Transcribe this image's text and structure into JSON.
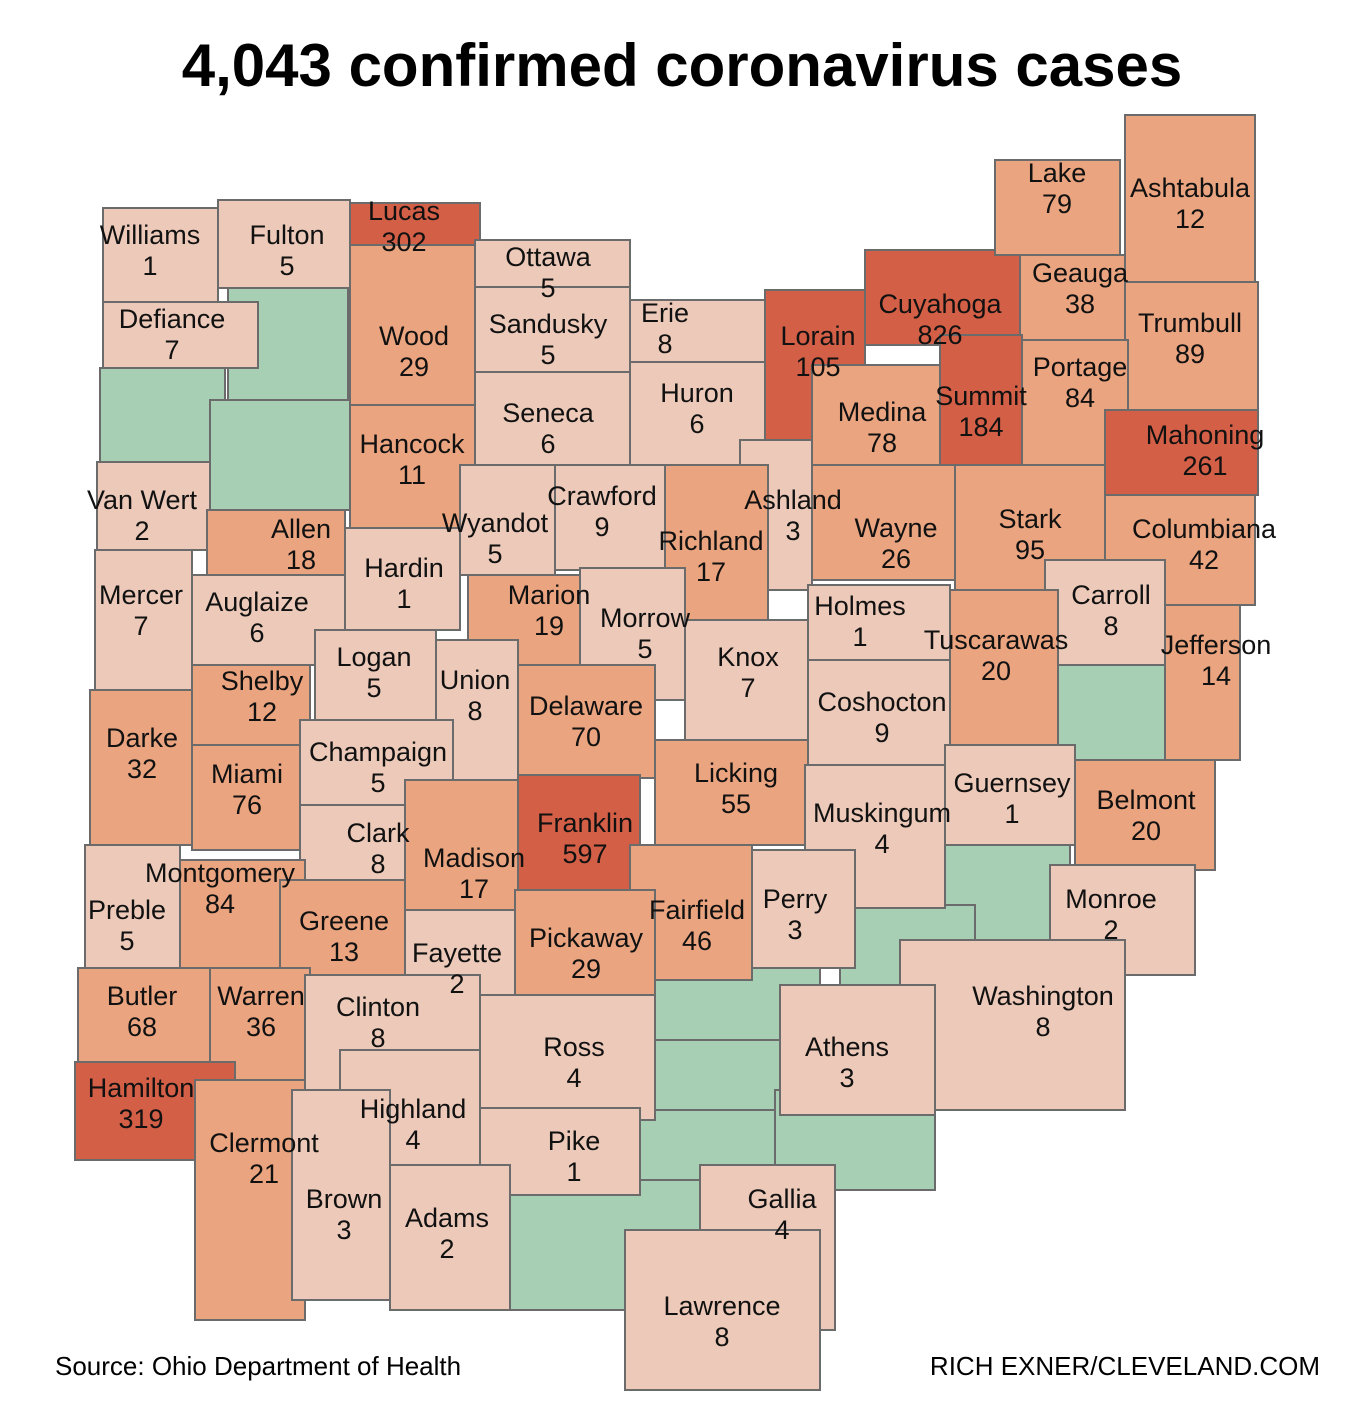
{
  "title": "4,043 confirmed coronavirus cases",
  "source": "Source: Ohio Department of Health",
  "credit": "RICH EXNER/CLEVELAND.COM",
  "counties": [
    {
      "name": "Williams",
      "cases": 1,
      "color": "#ecc9b8"
    },
    {
      "name": "Fulton",
      "cases": 5,
      "color": "#ecc9b8"
    },
    {
      "name": "Lucas",
      "cases": 302,
      "color": "#d35f47"
    },
    {
      "name": "Ottawa",
      "cases": 5,
      "color": "#ecc9b8"
    },
    {
      "name": "Defiance",
      "cases": 7,
      "color": "#ecc9b8"
    },
    {
      "name": "Wood",
      "cases": 29,
      "color": "#eaa47f"
    },
    {
      "name": "Sandusky",
      "cases": 5,
      "color": "#ecc9b8"
    },
    {
      "name": "Erie",
      "cases": 8,
      "color": "#ecc9b8"
    },
    {
      "name": "Lorain",
      "cases": 105,
      "color": "#d35f47"
    },
    {
      "name": "Cuyahoga",
      "cases": 826,
      "color": "#d35f47"
    },
    {
      "name": "Lake",
      "cases": 79,
      "color": "#eaa47f"
    },
    {
      "name": "Ashtabula",
      "cases": 12,
      "color": "#eaa47f"
    },
    {
      "name": "Geauga",
      "cases": 38,
      "color": "#eaa47f"
    },
    {
      "name": "Trumbull",
      "cases": 89,
      "color": "#eaa47f"
    },
    {
      "name": "Portage",
      "cases": 84,
      "color": "#eaa47f"
    },
    {
      "name": "Summit",
      "cases": 184,
      "color": "#d35f47"
    },
    {
      "name": "Medina",
      "cases": 78,
      "color": "#eaa47f"
    },
    {
      "name": "Huron",
      "cases": 6,
      "color": "#ecc9b8"
    },
    {
      "name": "Seneca",
      "cases": 6,
      "color": "#ecc9b8"
    },
    {
      "name": "Hancock",
      "cases": 11,
      "color": "#eaa47f"
    },
    {
      "name": "Mahoning",
      "cases": 261,
      "color": "#d35f47"
    },
    {
      "name": "Van Wert",
      "cases": 2,
      "color": "#ecc9b8"
    },
    {
      "name": "Crawford",
      "cases": 9,
      "color": "#ecc9b8"
    },
    {
      "name": "Ashland",
      "cases": 3,
      "color": "#ecc9b8"
    },
    {
      "name": "Allen",
      "cases": 18,
      "color": "#eaa47f"
    },
    {
      "name": "Wyandot",
      "cases": 5,
      "color": "#ecc9b8"
    },
    {
      "name": "Richland",
      "cases": 17,
      "color": "#eaa47f"
    },
    {
      "name": "Wayne",
      "cases": 26,
      "color": "#eaa47f"
    },
    {
      "name": "Stark",
      "cases": 95,
      "color": "#eaa47f"
    },
    {
      "name": "Columbiana",
      "cases": 42,
      "color": "#eaa47f"
    },
    {
      "name": "Hardin",
      "cases": 1,
      "color": "#ecc9b8"
    },
    {
      "name": "Mercer",
      "cases": 7,
      "color": "#ecc9b8"
    },
    {
      "name": "Auglaize",
      "cases": 6,
      "color": "#ecc9b8"
    },
    {
      "name": "Marion",
      "cases": 19,
      "color": "#eaa47f"
    },
    {
      "name": "Morrow",
      "cases": 5,
      "color": "#ecc9b8"
    },
    {
      "name": "Holmes",
      "cases": 1,
      "color": "#ecc9b8"
    },
    {
      "name": "Carroll",
      "cases": 8,
      "color": "#ecc9b8"
    },
    {
      "name": "Tuscarawas",
      "cases": 20,
      "color": "#eaa47f"
    },
    {
      "name": "Jefferson",
      "cases": 14,
      "color": "#eaa47f"
    },
    {
      "name": "Knox",
      "cases": 7,
      "color": "#ecc9b8"
    },
    {
      "name": "Logan",
      "cases": 5,
      "color": "#ecc9b8"
    },
    {
      "name": "Union",
      "cases": 8,
      "color": "#ecc9b8"
    },
    {
      "name": "Shelby",
      "cases": 12,
      "color": "#eaa47f"
    },
    {
      "name": "Delaware",
      "cases": 70,
      "color": "#eaa47f"
    },
    {
      "name": "Coshocton",
      "cases": 9,
      "color": "#ecc9b8"
    },
    {
      "name": "Darke",
      "cases": 32,
      "color": "#eaa47f"
    },
    {
      "name": "Champaign",
      "cases": 5,
      "color": "#ecc9b8"
    },
    {
      "name": "Miami",
      "cases": 76,
      "color": "#eaa47f"
    },
    {
      "name": "Licking",
      "cases": 55,
      "color": "#eaa47f"
    },
    {
      "name": "Guernsey",
      "cases": 1,
      "color": "#ecc9b8"
    },
    {
      "name": "Belmont",
      "cases": 20,
      "color": "#eaa47f"
    },
    {
      "name": "Muskingum",
      "cases": 4,
      "color": "#ecc9b8"
    },
    {
      "name": "Franklin",
      "cases": 597,
      "color": "#d35f47"
    },
    {
      "name": "Clark",
      "cases": 8,
      "color": "#ecc9b8"
    },
    {
      "name": "Madison",
      "cases": 17,
      "color": "#eaa47f"
    },
    {
      "name": "Montgomery",
      "cases": 84,
      "color": "#eaa47f"
    },
    {
      "name": "Preble",
      "cases": 5,
      "color": "#ecc9b8"
    },
    {
      "name": "Fairfield",
      "cases": 46,
      "color": "#eaa47f"
    },
    {
      "name": "Perry",
      "cases": 3,
      "color": "#ecc9b8"
    },
    {
      "name": "Monroe",
      "cases": 2,
      "color": "#ecc9b8"
    },
    {
      "name": "Greene",
      "cases": 13,
      "color": "#eaa47f"
    },
    {
      "name": "Fayette",
      "cases": 2,
      "color": "#ecc9b8"
    },
    {
      "name": "Pickaway",
      "cases": 29,
      "color": "#eaa47f"
    },
    {
      "name": "Butler",
      "cases": 68,
      "color": "#eaa47f"
    },
    {
      "name": "Warren",
      "cases": 36,
      "color": "#eaa47f"
    },
    {
      "name": "Washington",
      "cases": 8,
      "color": "#ecc9b8"
    },
    {
      "name": "Clinton",
      "cases": 8,
      "color": "#ecc9b8"
    },
    {
      "name": "Ross",
      "cases": 4,
      "color": "#ecc9b8"
    },
    {
      "name": "Athens",
      "cases": 3,
      "color": "#ecc9b8"
    },
    {
      "name": "Hamilton",
      "cases": 319,
      "color": "#d35f47"
    },
    {
      "name": "Highland",
      "cases": 4,
      "color": "#ecc9b8"
    },
    {
      "name": "Clermont",
      "cases": 21,
      "color": "#eaa47f"
    },
    {
      "name": "Pike",
      "cases": 1,
      "color": "#ecc9b8"
    },
    {
      "name": "Gallia",
      "cases": 4,
      "color": "#ecc9b8"
    },
    {
      "name": "Brown",
      "cases": 3,
      "color": "#ecc9b8"
    },
    {
      "name": "Adams",
      "cases": 2,
      "color": "#ecc9b8"
    },
    {
      "name": "Lawrence",
      "cases": 8,
      "color": "#ecc9b8"
    }
  ]
}
